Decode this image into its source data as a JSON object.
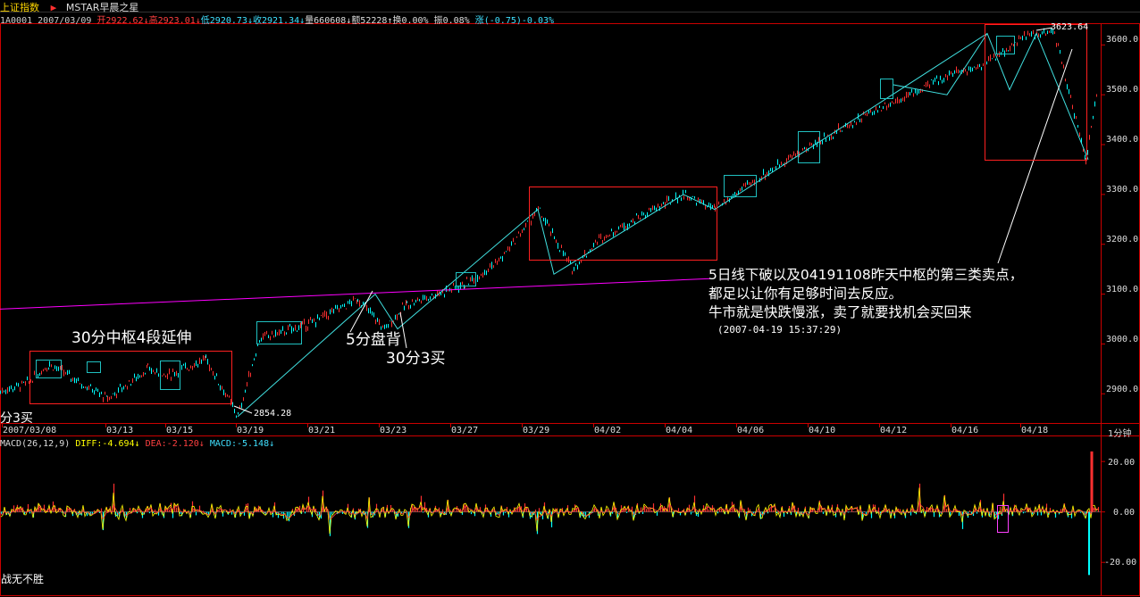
{
  "header": {
    "title": "上证指数",
    "title_color": "#ffd700",
    "arrow": "▶",
    "template": "MSTAR早晨之星"
  },
  "quote": {
    "code": "1A0001",
    "date": "2007/03/09",
    "open": "开2922.62",
    "high": "高2923.01",
    "low": "低2920.73",
    "close": "收2921.34",
    "volume": "量660608",
    "amount": "额52228",
    "turnover": "换0.00%",
    "amplitude": "振0.08%",
    "change": "涨(-0.75)-0.03%"
  },
  "annotations": {
    "a1": "30分中枢4段延伸",
    "a2": "5分盘背",
    "a3": "30分3买",
    "a4": "分3买",
    "low_label": "2854.28",
    "high_label": "3623.64",
    "comment_line1": "5日线下破以及04191108昨天中枢的第三类卖点，",
    "comment_line2": "都足以让你有足够时间去反应。",
    "comment_line3": "牛市就是快跌慢涨，卖了就要找机会买回来",
    "timestamp": "(2007-04-19 15:37:29)",
    "period": "1分钟",
    "footer": "战无不胜"
  },
  "macd": {
    "label": "MACD(26,12,9)",
    "diff": "DIFF:-4.694↓",
    "dea": "DEA:-2.120↓",
    "macd": "MACD:-5.148↓"
  },
  "colors": {
    "background": "#000000",
    "up": "#ff3030",
    "down": "#00ffff",
    "box": "#ff2020",
    "box_cyan": "#20c0c0",
    "trend": "#40e0e0",
    "ma_line": "#ff00ff",
    "diff": "#ffff00",
    "dea": "#ff4040",
    "axis": "#cc0000",
    "header_up": "#ff4040",
    "header_down": "#40e0ff"
  },
  "chart_data": {
    "type": "line",
    "title": "上证指数",
    "price_axis": {
      "ticks": [
        2900,
        3000,
        3100,
        3200,
        3300,
        3400,
        3500,
        3600
      ],
      "labels": [
        "2900.0",
        "3000.0",
        "3100.0",
        "3200.0",
        "3300.0",
        "3400.0",
        "3500.0",
        "3600.0"
      ],
      "range": [
        2845,
        3640
      ]
    },
    "x_labels": [
      "2007/03/08",
      "03/13",
      "03/15",
      "03/19",
      "03/21",
      "03/23",
      "03/27",
      "03/29",
      "04/02",
      "04/04",
      "04/06",
      "04/10",
      "04/12",
      "04/16",
      "04/18"
    ],
    "price_path": [
      {
        "date": "03/08",
        "value": 2905
      },
      {
        "date": "03/09",
        "value": 2921
      },
      {
        "date": "03/12",
        "value": 2960
      },
      {
        "date": "03/13",
        "value": 2890
      },
      {
        "date": "03/14",
        "value": 2950
      },
      {
        "date": "03/15",
        "value": 2935
      },
      {
        "date": "03/16",
        "value": 2970
      },
      {
        "date": "03/19",
        "value": 2854.28
      },
      {
        "date": "03/20",
        "value": 3010
      },
      {
        "date": "03/21",
        "value": 3040
      },
      {
        "date": "03/22",
        "value": 3090
      },
      {
        "date": "03/23",
        "value": 3030
      },
      {
        "date": "03/26",
        "value": 3080
      },
      {
        "date": "03/27",
        "value": 3120
      },
      {
        "date": "03/28",
        "value": 3170
      },
      {
        "date": "03/29",
        "value": 3270
      },
      {
        "date": "03/30",
        "value": 3150
      },
      {
        "date": "04/02",
        "value": 3210
      },
      {
        "date": "04/03",
        "value": 3260
      },
      {
        "date": "04/04",
        "value": 3300
      },
      {
        "date": "04/05",
        "value": 3270
      },
      {
        "date": "04/06",
        "value": 3310
      },
      {
        "date": "04/09",
        "value": 3370
      },
      {
        "date": "04/10",
        "value": 3420
      },
      {
        "date": "04/11",
        "value": 3470
      },
      {
        "date": "04/12",
        "value": 3510
      },
      {
        "date": "04/13",
        "value": 3540
      },
      {
        "date": "04/16",
        "value": 3560
      },
      {
        "date": "04/17",
        "value": 3620
      },
      {
        "date": "04/18",
        "value": 3623.64
      },
      {
        "date": "04/19",
        "value": 3370
      },
      {
        "date": "04/19 end",
        "value": 3510
      }
    ],
    "macd_axis": {
      "ticks": [
        20,
        0,
        -20
      ],
      "labels": [
        "20.00",
        "0.00",
        "-20.00"
      ]
    }
  }
}
